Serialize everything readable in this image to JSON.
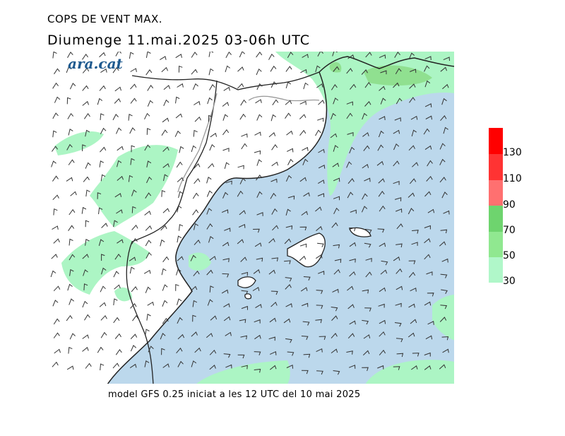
{
  "header": {
    "title": "COPS DE VENT MAX.",
    "subtitle": "Diumenge  11.mai.2025 03-06h UTC",
    "logo_text": "ara.cat"
  },
  "footer": {
    "text": "model GFS 0.25 iniciat a les 12 UTC del 10 mai 2025"
  },
  "legend": {
    "labels": [
      "130",
      "110",
      "90",
      "70",
      "50",
      "30"
    ],
    "colors": {
      "band_150": "#ff0000",
      "band_130": "#ff3333",
      "band_110": "#ff7070",
      "band_90": "#6ed46e",
      "band_70": "#90e890",
      "band_50": "#b0f7c9"
    }
  },
  "map": {
    "sea_color": "#bcd8ec",
    "gust_30_50": "#acf5c4",
    "gust_50_70": "#90e090",
    "coast_color": "#222222",
    "border_color": "#999999"
  }
}
